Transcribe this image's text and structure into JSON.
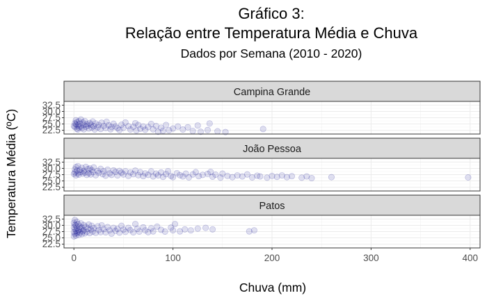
{
  "chart_data": {
    "type": "scatter",
    "title": "Gráfico 3:",
    "title_line2": "Relação entre Temperatura Média e Chuva",
    "subtitle": "Dados por Semana (2010 - 2020)",
    "xlabel": "Chuva (mm)",
    "ylabel": "Temperatura Média (ºC)",
    "xlim": [
      -10,
      410
    ],
    "ylim": [
      21,
      34
    ],
    "x_ticks": [
      0,
      100,
      200,
      300,
      400
    ],
    "x_tick_labels": [
      "0",
      "100",
      "200",
      "300",
      "400"
    ],
    "y_ticks": [
      22.5,
      25.0,
      27.5,
      30.0,
      32.5
    ],
    "y_tick_labels": [
      "22.5",
      "25.0",
      "27.5",
      "30.0",
      "32.5"
    ],
    "grid": true,
    "point_color": "#00008B",
    "point_opacity": 0.12,
    "panel_strip_color": "#d9d9d9",
    "facets": [
      {
        "name": "Campina Grande",
        "points": [
          [
            0,
            24.2
          ],
          [
            1,
            25.3
          ],
          [
            1,
            23.8
          ],
          [
            2,
            26.5
          ],
          [
            2,
            24.9
          ],
          [
            3,
            23.1
          ],
          [
            3,
            25.8
          ],
          [
            4,
            24.4
          ],
          [
            4,
            22.8
          ],
          [
            5,
            26.1
          ],
          [
            5,
            23.6
          ],
          [
            6,
            25.1
          ],
          [
            7,
            24.0
          ],
          [
            7,
            26.8
          ],
          [
            8,
            23.4
          ],
          [
            9,
            25.6
          ],
          [
            10,
            24.7
          ],
          [
            10,
            22.9
          ],
          [
            11,
            26.2
          ],
          [
            12,
            23.9
          ],
          [
            13,
            25.0
          ],
          [
            14,
            24.3
          ],
          [
            15,
            23.2
          ],
          [
            16,
            25.4
          ],
          [
            17,
            24.8
          ],
          [
            18,
            23.6
          ],
          [
            19,
            26.0
          ],
          [
            20,
            24.1
          ],
          [
            21,
            22.8
          ],
          [
            22,
            25.2
          ],
          [
            24,
            23.7
          ],
          [
            25,
            24.6
          ],
          [
            27,
            23.0
          ],
          [
            28,
            25.5
          ],
          [
            30,
            24.2
          ],
          [
            32,
            23.4
          ],
          [
            33,
            25.9
          ],
          [
            35,
            24.5
          ],
          [
            37,
            22.9
          ],
          [
            38,
            23.8
          ],
          [
            40,
            25.1
          ],
          [
            42,
            24.0
          ],
          [
            44,
            23.3
          ],
          [
            46,
            22.6
          ],
          [
            48,
            24.7
          ],
          [
            50,
            23.5
          ],
          [
            52,
            25.6
          ],
          [
            55,
            24.1
          ],
          [
            57,
            22.8
          ],
          [
            60,
            23.9
          ],
          [
            62,
            25.3
          ],
          [
            63,
            22.4
          ],
          [
            65,
            24.6
          ],
          [
            67,
            23.1
          ],
          [
            70,
            24.0
          ],
          [
            72,
            22.7
          ],
          [
            75,
            23.8
          ],
          [
            78,
            25.0
          ],
          [
            80,
            22.9
          ],
          [
            83,
            24.2
          ],
          [
            85,
            21.9
          ],
          [
            88,
            23.5
          ],
          [
            90,
            22.3
          ],
          [
            93,
            24.6
          ],
          [
            96,
            22.5
          ],
          [
            100,
            23.2
          ],
          [
            105,
            24.0
          ],
          [
            110,
            22.8
          ],
          [
            115,
            23.7
          ],
          [
            120,
            22.2
          ],
          [
            125,
            24.4
          ],
          [
            128,
            21.9
          ],
          [
            135,
            22.6
          ],
          [
            137,
            25.2
          ],
          [
            145,
            22.1
          ],
          [
            153,
            21.8
          ],
          [
            191,
            23.0
          ]
        ]
      },
      {
        "name": "João Pessoa",
        "points": [
          [
            0,
            27.8
          ],
          [
            1,
            29.6
          ],
          [
            1,
            28.4
          ],
          [
            2,
            30.5
          ],
          [
            2,
            27.2
          ],
          [
            3,
            29.1
          ],
          [
            4,
            28.0
          ],
          [
            4,
            30.9
          ],
          [
            5,
            27.5
          ],
          [
            6,
            29.4
          ],
          [
            7,
            28.6
          ],
          [
            8,
            30.2
          ],
          [
            9,
            27.9
          ],
          [
            10,
            29.0
          ],
          [
            11,
            28.3
          ],
          [
            12,
            30.6
          ],
          [
            13,
            27.4
          ],
          [
            14,
            29.7
          ],
          [
            15,
            28.1
          ],
          [
            16,
            30.0
          ],
          [
            17,
            27.6
          ],
          [
            18,
            29.3
          ],
          [
            19,
            28.5
          ],
          [
            20,
            30.4
          ],
          [
            22,
            27.3
          ],
          [
            24,
            29.0
          ],
          [
            25,
            28.2
          ],
          [
            27,
            29.8
          ],
          [
            29,
            27.7
          ],
          [
            30,
            28.9
          ],
          [
            32,
            27.1
          ],
          [
            34,
            29.5
          ],
          [
            36,
            28.0
          ],
          [
            38,
            27.4
          ],
          [
            40,
            29.2
          ],
          [
            42,
            28.6
          ],
          [
            44,
            27.2
          ],
          [
            46,
            29.0
          ],
          [
            48,
            28.3
          ],
          [
            50,
            27.6
          ],
          [
            52,
            28.9
          ],
          [
            55,
            27.0
          ],
          [
            57,
            28.4
          ],
          [
            60,
            27.7
          ],
          [
            62,
            29.1
          ],
          [
            65,
            27.3
          ],
          [
            67,
            28.5
          ],
          [
            70,
            26.9
          ],
          [
            72,
            28.0
          ],
          [
            75,
            27.4
          ],
          [
            78,
            28.8
          ],
          [
            80,
            26.8
          ],
          [
            83,
            27.9
          ],
          [
            85,
            27.2
          ],
          [
            88,
            28.4
          ],
          [
            90,
            26.6
          ],
          [
            93,
            27.7
          ],
          [
            95,
            28.9
          ],
          [
            98,
            27.0
          ],
          [
            100,
            26.5
          ],
          [
            104,
            28.1
          ],
          [
            107,
            27.3
          ],
          [
            110,
            26.8
          ],
          [
            113,
            27.9
          ],
          [
            116,
            26.4
          ],
          [
            120,
            27.6
          ],
          [
            123,
            28.5
          ],
          [
            126,
            26.9
          ],
          [
            130,
            27.4
          ],
          [
            135,
            27.8
          ],
          [
            138,
            28.6
          ],
          [
            140,
            26.7
          ],
          [
            143,
            27.5
          ],
          [
            148,
            26.3
          ],
          [
            150,
            27.9
          ],
          [
            155,
            27.0
          ],
          [
            160,
            26.5
          ],
          [
            165,
            27.2
          ],
          [
            170,
            26.8
          ],
          [
            175,
            27.6
          ],
          [
            180,
            26.4
          ],
          [
            185,
            27.1
          ],
          [
            188,
            26.8
          ],
          [
            195,
            26.3
          ],
          [
            200,
            27.0
          ],
          [
            205,
            26.6
          ],
          [
            210,
            27.2
          ],
          [
            215,
            26.5
          ],
          [
            220,
            26.9
          ],
          [
            230,
            26.3
          ],
          [
            235,
            26.8
          ],
          [
            240,
            26.1
          ],
          [
            260,
            26.5
          ],
          [
            398,
            26.4
          ]
        ]
      },
      {
        "name": "Patos",
        "points": [
          [
            0,
            27.3
          ],
          [
            0,
            29.2
          ],
          [
            0,
            31.0
          ],
          [
            0,
            25.6
          ],
          [
            1,
            28.5
          ],
          [
            1,
            30.2
          ],
          [
            1,
            26.6
          ],
          [
            1,
            32.1
          ],
          [
            2,
            27.8
          ],
          [
            2,
            29.9
          ],
          [
            2,
            25.9
          ],
          [
            3,
            28.9
          ],
          [
            3,
            31.4
          ],
          [
            3,
            26.9
          ],
          [
            4,
            27.5
          ],
          [
            4,
            30.5
          ],
          [
            5,
            28.2
          ],
          [
            5,
            26.2
          ],
          [
            6,
            29.5
          ],
          [
            6,
            27.1
          ],
          [
            7,
            30.8
          ],
          [
            7,
            28.6
          ],
          [
            8,
            26.5
          ],
          [
            8,
            29.1
          ],
          [
            9,
            27.6
          ],
          [
            10,
            30.1
          ],
          [
            10,
            28.0
          ],
          [
            11,
            26.8
          ],
          [
            12,
            29.4
          ],
          [
            13,
            27.4
          ],
          [
            14,
            28.7
          ],
          [
            15,
            30.3
          ],
          [
            16,
            26.9
          ],
          [
            17,
            28.3
          ],
          [
            18,
            29.8
          ],
          [
            19,
            27.5
          ],
          [
            20,
            28.9
          ],
          [
            22,
            27.0
          ],
          [
            24,
            29.6
          ],
          [
            25,
            28.1
          ],
          [
            27,
            27.3
          ],
          [
            28,
            30.0
          ],
          [
            30,
            28.5
          ],
          [
            32,
            27.2
          ],
          [
            34,
            29.3
          ],
          [
            36,
            28.0
          ],
          [
            38,
            26.7
          ],
          [
            40,
            29.0
          ],
          [
            42,
            27.8
          ],
          [
            44,
            28.6
          ],
          [
            46,
            27.1
          ],
          [
            48,
            29.8
          ],
          [
            50,
            28.3
          ],
          [
            52,
            27.4
          ],
          [
            55,
            29.0
          ],
          [
            57,
            28.1
          ],
          [
            60,
            27.2
          ],
          [
            62,
            30.5
          ],
          [
            64,
            28.6
          ],
          [
            66,
            27.5
          ],
          [
            70,
            29.2
          ],
          [
            72,
            28.0
          ],
          [
            75,
            27.3
          ],
          [
            78,
            28.8
          ],
          [
            80,
            27.6
          ],
          [
            84,
            29.5
          ],
          [
            88,
            28.2
          ],
          [
            92,
            27.5
          ],
          [
            98,
            29.1
          ],
          [
            100,
            28.0
          ],
          [
            102,
            30.5
          ],
          [
            107,
            27.6
          ],
          [
            112,
            28.4
          ],
          [
            118,
            28.0
          ],
          [
            125,
            28.7
          ],
          [
            133,
            29.0
          ],
          [
            140,
            28.4
          ],
          [
            177,
            27.6
          ],
          [
            182,
            28.0
          ]
        ]
      }
    ]
  }
}
